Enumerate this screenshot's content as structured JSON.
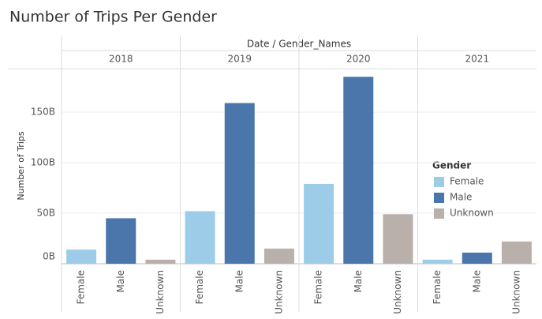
{
  "chart_data": {
    "type": "bar",
    "title": "Number of Trips Per Gender",
    "header": "Date / Gender_Names",
    "y_label": "Number of Trips",
    "legend_title": "Gender",
    "categories": [
      "2018",
      "2019",
      "2020",
      "2021"
    ],
    "series": [
      {
        "name": "Female",
        "color": "#9dcce9",
        "values": [
          14000000000,
          52000000000,
          79000000000,
          4000000000
        ]
      },
      {
        "name": "Male",
        "color": "#4a76ac",
        "values": [
          45000000000,
          159000000000,
          185000000000,
          11000000000
        ]
      },
      {
        "name": "Unknown",
        "color": "#bab0ab",
        "values": [
          4000000000,
          15000000000,
          49000000000,
          22000000000
        ]
      }
    ],
    "ylim": [
      0,
      193000000000
    ],
    "yticks": [
      {
        "value": 0,
        "label": "0B"
      },
      {
        "value": 50000000000,
        "label": "50B"
      },
      {
        "value": 100000000000,
        "label": "100B"
      },
      {
        "value": 150000000000,
        "label": "150B"
      }
    ],
    "grid": true
  }
}
